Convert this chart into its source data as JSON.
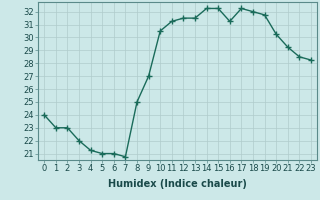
{
  "x": [
    0,
    1,
    2,
    3,
    4,
    5,
    6,
    7,
    8,
    9,
    10,
    11,
    12,
    13,
    14,
    15,
    16,
    17,
    18,
    19,
    20,
    21,
    22,
    23
  ],
  "y": [
    24,
    23,
    23,
    22,
    21.25,
    21,
    21,
    20.75,
    25,
    27,
    30.5,
    31.25,
    31.5,
    31.5,
    32.25,
    32.25,
    31.25,
    32.25,
    32,
    31.75,
    30.25,
    29.25,
    28.5,
    28.25
  ],
  "line_color": "#1a6b5a",
  "marker": "+",
  "marker_size": 4,
  "marker_linewidth": 1.0,
  "bg_color": "#cce8e8",
  "grid_color": "#b0cccc",
  "xlabel": "Humidex (Indice chaleur)",
  "xlabel_fontsize": 7,
  "tick_fontsize": 6,
  "xlim": [
    -0.5,
    23.5
  ],
  "ylim": [
    20.5,
    32.75
  ],
  "yticks": [
    21,
    22,
    23,
    24,
    25,
    26,
    27,
    28,
    29,
    30,
    31,
    32
  ],
  "xticks": [
    0,
    1,
    2,
    3,
    4,
    5,
    6,
    7,
    8,
    9,
    10,
    11,
    12,
    13,
    14,
    15,
    16,
    17,
    18,
    19,
    20,
    21,
    22,
    23
  ],
  "line_width": 1.0
}
